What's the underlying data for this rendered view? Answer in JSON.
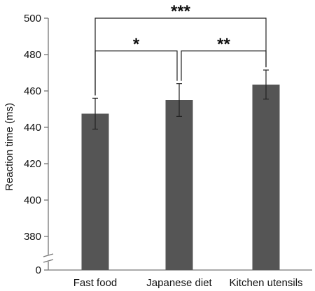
{
  "chart_data": {
    "type": "bar",
    "title": "",
    "xlabel": "",
    "ylabel": "Reaction time (ms)",
    "categories": [
      "Fast  food",
      "Japanese diet",
      "Kitchen utensils"
    ],
    "values": [
      447.5,
      455,
      463.5
    ],
    "errors": [
      8.5,
      9,
      8
    ],
    "ylim": [
      0,
      500
    ],
    "axis_break": [
      0,
      370
    ],
    "yticks": [
      0,
      380,
      400,
      420,
      440,
      460,
      480,
      500
    ],
    "ytick_labels": [
      "0",
      "380",
      "400",
      "420",
      "440",
      "460",
      "480",
      "500"
    ],
    "grid": false,
    "legend": "none",
    "significance": [
      {
        "from": 0,
        "to": 2,
        "label": "***",
        "level": 500
      },
      {
        "from": 0,
        "to": 1,
        "label": "*",
        "level": 482
      },
      {
        "from": 1,
        "to": 2,
        "label": "**",
        "level": 482
      }
    ],
    "colors": {
      "bar": "#555555",
      "axis": "#777777",
      "error_bar": "#222222",
      "bracket": "#222222"
    }
  }
}
